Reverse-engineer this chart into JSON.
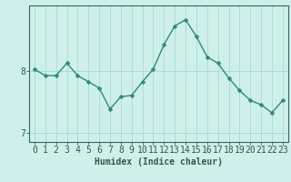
{
  "x": [
    0,
    1,
    2,
    3,
    4,
    5,
    6,
    7,
    8,
    9,
    10,
    11,
    12,
    13,
    14,
    15,
    16,
    17,
    18,
    19,
    20,
    21,
    22,
    23
  ],
  "y": [
    8.02,
    7.92,
    7.92,
    8.12,
    7.92,
    7.82,
    7.72,
    7.38,
    7.58,
    7.6,
    7.82,
    8.02,
    8.42,
    8.72,
    8.82,
    8.55,
    8.22,
    8.12,
    7.88,
    7.68,
    7.52,
    7.45,
    7.32,
    7.52
  ],
  "line_color": "#2e8b74",
  "marker_color": "#2e8b74",
  "bg_color": "#cff0ea",
  "grid_color": "#aaddd6",
  "axis_color": "#2e6b60",
  "text_color": "#2e5a50",
  "xlabel": "Humidex (Indice chaleur)",
  "ylabel_ticks": [
    7,
    8
  ],
  "xlim": [
    -0.5,
    23.5
  ],
  "ylim": [
    6.85,
    9.05
  ],
  "xlabel_fontsize": 7,
  "tick_fontsize": 7,
  "line_width": 1.0,
  "marker_size": 2.5
}
